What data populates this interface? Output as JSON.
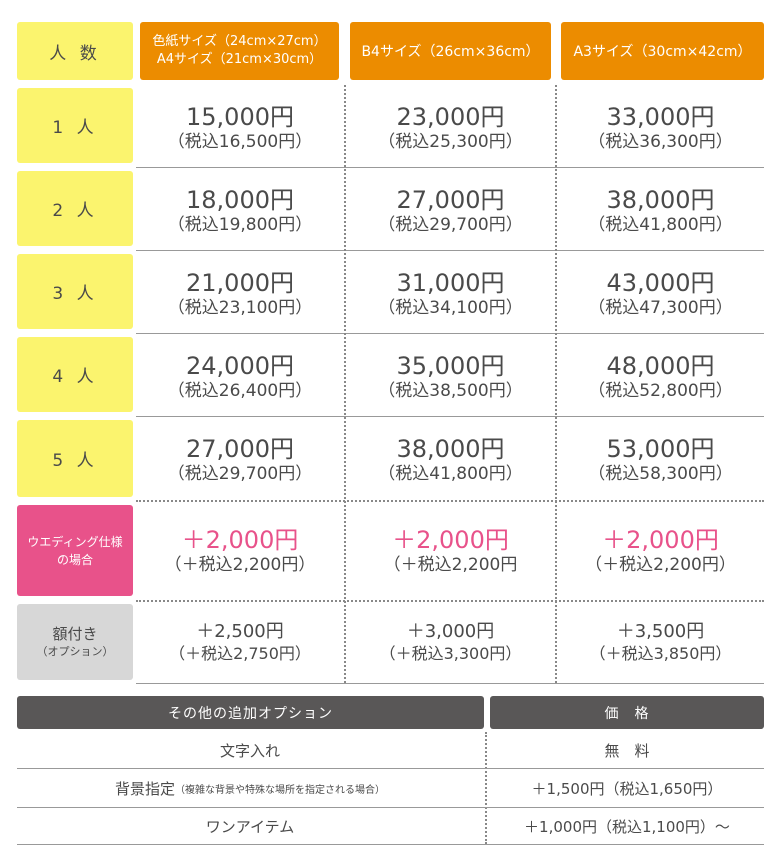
{
  "header": {
    "count_label": "人 数",
    "col1_line1": "色紙サイズ（24cm×27cm）",
    "col1_line2": "A4サイズ（21cm×30cm）",
    "col2": "B4サイズ（26cm×36cm）",
    "col3": "A3サイズ（30cm×42cm）"
  },
  "rows": [
    {
      "label": "1 人",
      "c1": {
        "price": "15,000円",
        "tax": "（税込16,500円）"
      },
      "c2": {
        "price": "23,000円",
        "tax": "（税込25,300円）"
      },
      "c3": {
        "price": "33,000円",
        "tax": "（税込36,300円）"
      }
    },
    {
      "label": "2 人",
      "c1": {
        "price": "18,000円",
        "tax": "（税込19,800円）"
      },
      "c2": {
        "price": "27,000円",
        "tax": "（税込29,700円）"
      },
      "c3": {
        "price": "38,000円",
        "tax": "（税込41,800円）"
      }
    },
    {
      "label": "3 人",
      "c1": {
        "price": "21,000円",
        "tax": "（税込23,100円）"
      },
      "c2": {
        "price": "31,000円",
        "tax": "（税込34,100円）"
      },
      "c3": {
        "price": "43,000円",
        "tax": "（税込47,300円）"
      }
    },
    {
      "label": "4 人",
      "c1": {
        "price": "24,000円",
        "tax": "（税込26,400円）"
      },
      "c2": {
        "price": "35,000円",
        "tax": "（税込38,500円）"
      },
      "c3": {
        "price": "48,000円",
        "tax": "（税込52,800円）"
      }
    },
    {
      "label": "5 人",
      "c1": {
        "price": "27,000円",
        "tax": "（税込29,700円）"
      },
      "c2": {
        "price": "38,000円",
        "tax": "（税込41,800円）"
      },
      "c3": {
        "price": "53,000円",
        "tax": "（税込58,300円）"
      }
    }
  ],
  "wedding": {
    "label_line1": "ウエディング仕様",
    "label_line2": "の場合",
    "c1": {
      "price": "＋2,000円",
      "tax": "（＋税込2,200円）"
    },
    "c2": {
      "price": "＋2,000円",
      "tax": "（＋税込2,200円"
    },
    "c3": {
      "price": "＋2,000円",
      "tax": "（＋税込2,200円）"
    }
  },
  "frame": {
    "label_line1": "額付き",
    "label_line2": "（オプション）",
    "c1": {
      "price": "＋2,500円",
      "tax": "（＋税込2,750円）"
    },
    "c2": {
      "price": "＋3,000円",
      "tax": "（＋税込3,300円）"
    },
    "c3": {
      "price": "＋3,500円",
      "tax": "（＋税込3,850円）"
    }
  },
  "options": {
    "header_name": "その他の追加オプション",
    "header_price": "価　格",
    "items": [
      {
        "name": "文字入れ",
        "note": "",
        "price": "無　料"
      },
      {
        "name": "背景指定",
        "note": "（複雑な背景や特殊な場所を指定される場合）",
        "price": "＋1,500円（税込1,650円）"
      },
      {
        "name": "ワンアイテム",
        "note": "",
        "price": "＋1,000円（税込1,100円）～"
      }
    ]
  },
  "colors": {
    "header_orange": "#ec8c00",
    "label_yellow": "#fbf46e",
    "wedding_pink": "#e8528a",
    "frame_gray": "#d7d7d7",
    "option_bar": "#595757"
  }
}
